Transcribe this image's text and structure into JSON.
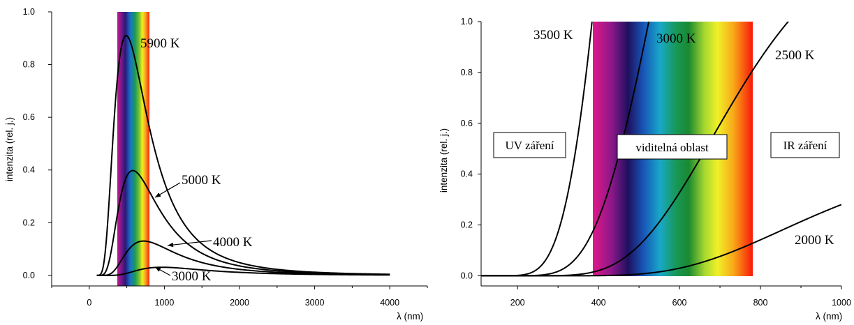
{
  "chart_data": [
    {
      "type": "line",
      "title": "",
      "xlabel": "λ (nm)",
      "ylabel": "intenzita (rel. j.)",
      "xlim": [
        -500,
        4500
      ],
      "ylim": [
        -0.04,
        1.0
      ],
      "xticks": [
        0,
        1000,
        2000,
        3000,
        4000
      ],
      "xtick_labels": [
        "0",
        "1000",
        "2000",
        "3000",
        "4000"
      ],
      "yticks": [
        0.0,
        0.2,
        0.4,
        0.6,
        0.8,
        1.0
      ],
      "ytick_labels": [
        "0.0",
        "0.2",
        "0.4",
        "0.6",
        "0.8",
        "1.0"
      ],
      "grid": false,
      "visible_band_nm": [
        380,
        780
      ],
      "x_range_curves": [
        100,
        4000
      ],
      "normalize_temperature_K": 5900,
      "series": [
        {
          "name": "5900 K",
          "temperature_K": 5900,
          "peak": {
            "x": 491,
            "y": 0.91
          }
        },
        {
          "name": "5000 K",
          "temperature_K": 5000,
          "peak": {
            "x": 580,
            "y": 0.4
          }
        },
        {
          "name": "4000 K",
          "temperature_K": 4000,
          "peak": {
            "x": 724,
            "y": 0.13
          }
        },
        {
          "name": "3000 K",
          "temperature_K": 3000,
          "peak": {
            "x": 966,
            "y": 0.03
          }
        }
      ],
      "annotations": [
        {
          "text": "5900 K",
          "arrow": false
        },
        {
          "text": "5000 K",
          "arrow": true
        },
        {
          "text": "4000 K",
          "arrow": true
        },
        {
          "text": "3000 K",
          "arrow": true
        }
      ]
    },
    {
      "type": "line",
      "title": "",
      "xlabel": "λ (nm)",
      "ylabel": "intenzita (rel. j.)",
      "xlim": [
        110,
        1000
      ],
      "ylim": [
        -0.04,
        1.0
      ],
      "xticks": [
        200,
        400,
        600,
        800,
        1000
      ],
      "xtick_labels": [
        "200",
        "400",
        "600",
        "800",
        "1000"
      ],
      "yticks": [
        0.0,
        0.2,
        0.4,
        0.6,
        0.8,
        1.0
      ],
      "ytick_labels": [
        "0.0",
        "0.2",
        "0.4",
        "0.6",
        "0.8",
        "1.0"
      ],
      "grid": false,
      "visible_band_nm": [
        380,
        780
      ],
      "x_range_curves": [
        110,
        1000
      ],
      "series": [
        {
          "name": "3500 K",
          "temperature_K": 3500,
          "points": [
            [
              200,
              0.001
            ],
            [
              250,
              0.03
            ],
            [
              300,
              0.2
            ],
            [
              350,
              0.6
            ],
            [
              385,
              1.0
            ]
          ]
        },
        {
          "name": "3000 K",
          "temperature_K": 3000,
          "points": [
            [
              250,
              0.003
            ],
            [
              300,
              0.03
            ],
            [
              350,
              0.1
            ],
            [
              400,
              0.27
            ],
            [
              450,
              0.52
            ],
            [
              500,
              0.85
            ],
            [
              525,
              1.0
            ]
          ]
        },
        {
          "name": "2500 K",
          "temperature_K": 2500,
          "points": [
            [
              300,
              0.004
            ],
            [
              400,
              0.04
            ],
            [
              500,
              0.17
            ],
            [
              600,
              0.4
            ],
            [
              700,
              0.68
            ],
            [
              800,
              0.95
            ],
            [
              880,
              1.0
            ]
          ]
        },
        {
          "name": "2000 K",
          "temperature_K": 2000,
          "points": [
            [
              400,
              0.002
            ],
            [
              600,
              0.03
            ],
            [
              700,
              0.066
            ],
            [
              800,
              0.13
            ],
            [
              900,
              0.2
            ],
            [
              1000,
              0.28
            ]
          ]
        }
      ],
      "annotations": [
        {
          "text": "3500 K"
        },
        {
          "text": "3000 K"
        },
        {
          "text": "2500 K"
        },
        {
          "text": "2000 K"
        }
      ],
      "region_labels": [
        "UV záření",
        "viditelná oblast",
        "IR záření"
      ]
    }
  ]
}
